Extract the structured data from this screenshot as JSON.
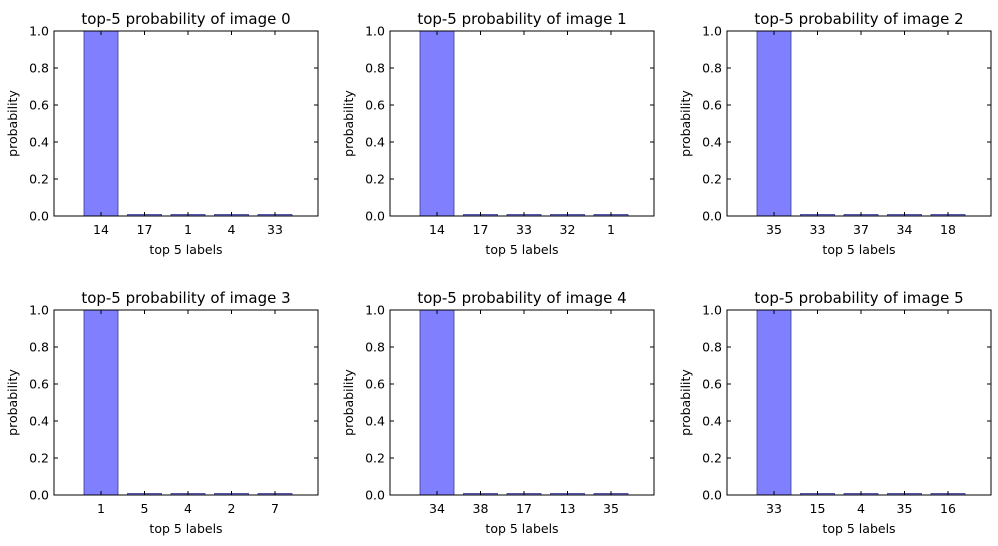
{
  "chart_data": [
    {
      "type": "bar",
      "title": "top-5 probability of image 0",
      "xlabel": "top 5 labels",
      "ylabel": "probability",
      "ylim": [
        0,
        1.0
      ],
      "yticks": [
        "0.0",
        "0.2",
        "0.4",
        "0.6",
        "0.8",
        "1.0"
      ],
      "categories": [
        "14",
        "17",
        "1",
        "4",
        "33"
      ],
      "values": [
        1.0,
        0.002,
        0.002,
        0.002,
        0.002
      ],
      "bar_color": "#8080ff"
    },
    {
      "type": "bar",
      "title": "top-5 probability of image 1",
      "xlabel": "top 5 labels",
      "ylabel": "probability",
      "ylim": [
        0,
        1.0
      ],
      "yticks": [
        "0.0",
        "0.2",
        "0.4",
        "0.6",
        "0.8",
        "1.0"
      ],
      "categories": [
        "14",
        "17",
        "33",
        "32",
        "1"
      ],
      "values": [
        1.0,
        0.002,
        0.0,
        0.0,
        0.0
      ],
      "bar_color": "#8080ff"
    },
    {
      "type": "bar",
      "title": "top-5 probability of image 2",
      "xlabel": "top 5 labels",
      "ylabel": "probability",
      "ylim": [
        0,
        1.0
      ],
      "yticks": [
        "0.0",
        "0.2",
        "0.4",
        "0.6",
        "0.8",
        "1.0"
      ],
      "categories": [
        "35",
        "33",
        "37",
        "34",
        "18"
      ],
      "values": [
        1.0,
        0.002,
        0.0,
        0.0,
        0.0
      ],
      "bar_color": "#8080ff"
    },
    {
      "type": "bar",
      "title": "top-5 probability of image 3",
      "xlabel": "top 5 labels",
      "ylabel": "probability",
      "ylim": [
        0,
        1.0
      ],
      "yticks": [
        "0.0",
        "0.2",
        "0.4",
        "0.6",
        "0.8",
        "1.0"
      ],
      "categories": [
        "1",
        "5",
        "4",
        "2",
        "7"
      ],
      "values": [
        1.0,
        0.002,
        0.002,
        0.002,
        0.002
      ],
      "bar_color": "#8080ff"
    },
    {
      "type": "bar",
      "title": "top-5 probability of image 4",
      "xlabel": "top 5 labels",
      "ylabel": "probability",
      "ylim": [
        0,
        1.0
      ],
      "yticks": [
        "0.0",
        "0.2",
        "0.4",
        "0.6",
        "0.8",
        "1.0"
      ],
      "categories": [
        "34",
        "38",
        "17",
        "13",
        "35"
      ],
      "values": [
        1.0,
        0.002,
        0.002,
        0.0,
        0.0
      ],
      "bar_color": "#8080ff"
    },
    {
      "type": "bar",
      "title": "top-5 probability of image 5",
      "xlabel": "top 5 labels",
      "ylabel": "probability",
      "ylim": [
        0,
        1.0
      ],
      "yticks": [
        "0.0",
        "0.2",
        "0.4",
        "0.6",
        "0.8",
        "1.0"
      ],
      "categories": [
        "33",
        "15",
        "4",
        "35",
        "16"
      ],
      "values": [
        1.0,
        0.002,
        0.002,
        0.002,
        0.002
      ],
      "bar_color": "#8080ff"
    }
  ]
}
